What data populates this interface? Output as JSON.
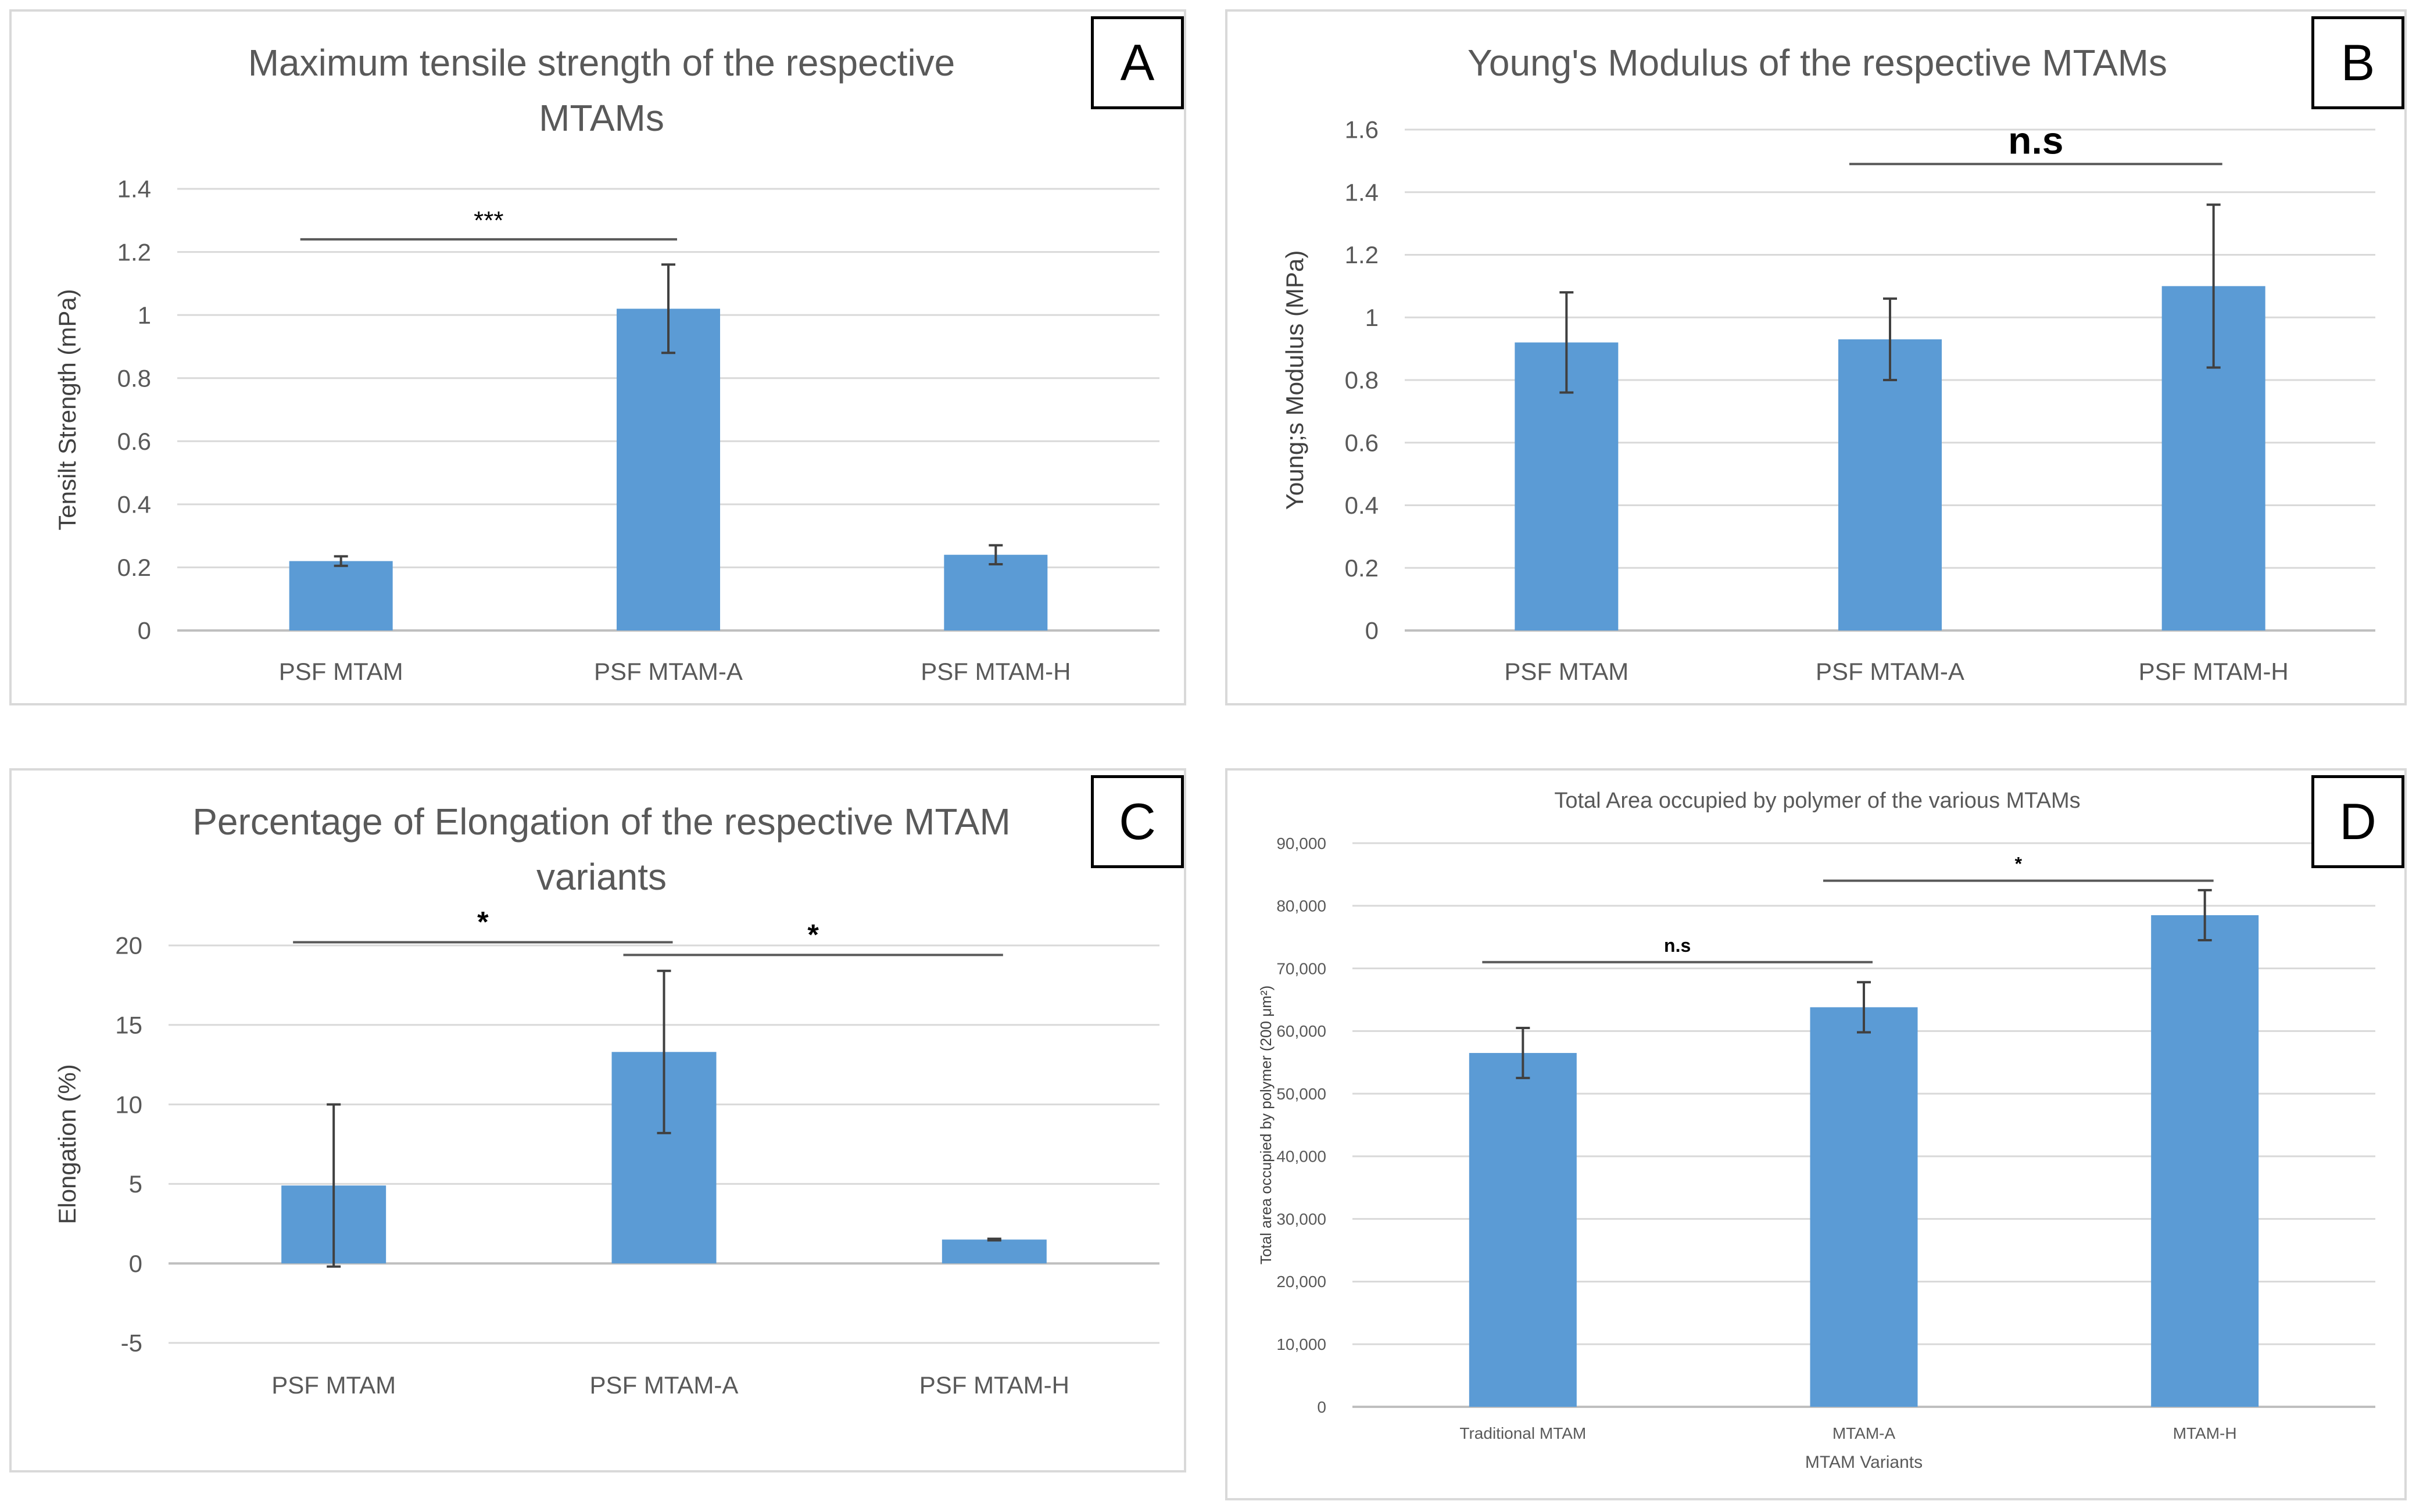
{
  "colors": {
    "bar": "#5b9bd5",
    "grid": "#d9d9d9",
    "axis_text": "#595959",
    "error": "#404040",
    "sig_line": "#595959"
  },
  "chart_data": [
    {
      "id": "A",
      "type": "bar",
      "panel_label": "A",
      "title_lines": [
        "Maximum tensile strength of the respective",
        "MTAMs"
      ],
      "ylabel": "Tensilt Strength (mPa)",
      "xlabel": "",
      "categories": [
        "PSF MTAM",
        "PSF MTAM-A",
        "PSF MTAM-H"
      ],
      "values": [
        0.22,
        1.02,
        0.24
      ],
      "errors": [
        0.015,
        0.14,
        0.03
      ],
      "ylim": [
        0,
        1.4
      ],
      "yticks": [
        0,
        0.2,
        0.4,
        0.6,
        0.8,
        1,
        1.2,
        1.4
      ],
      "ytick_labels": [
        "0",
        "0.2",
        "0.4",
        "0.6",
        "0.8",
        "1",
        "1.2",
        "1.4"
      ],
      "significance": [
        {
          "from": 0,
          "to": 1,
          "level": 1.24,
          "label": "***"
        }
      ]
    },
    {
      "id": "B",
      "type": "bar",
      "panel_label": "B",
      "title_lines": [
        "Young's Modulus of the respective MTAMs"
      ],
      "ylabel": "Young;s Modulus (MPa)",
      "xlabel": "",
      "categories": [
        "PSF MTAM",
        "PSF MTAM-A",
        "PSF MTAM-H"
      ],
      "values": [
        0.92,
        0.93,
        1.1
      ],
      "errors": [
        0.16,
        0.13,
        0.26
      ],
      "ylim": [
        0,
        1.6
      ],
      "yticks": [
        0,
        0.2,
        0.4,
        0.6,
        0.8,
        1,
        1.2,
        1.4,
        1.6
      ],
      "ytick_labels": [
        "0",
        "0.2",
        "0.4",
        "0.6",
        "0.8",
        "1",
        "1.2",
        "1.4",
        "1.6"
      ],
      "significance": [
        {
          "from": 1,
          "to": 2,
          "level": 1.49,
          "label": "n.s"
        }
      ]
    },
    {
      "id": "C",
      "type": "bar",
      "panel_label": "C",
      "title_lines": [
        "Percentage of Elongation of the respective MTAM",
        "variants"
      ],
      "ylabel": "Elongation (%)",
      "xlabel": "",
      "categories": [
        "PSF MTAM",
        "PSF MTAM-A",
        "PSF MTAM-H"
      ],
      "values": [
        4.9,
        13.3,
        1.5
      ],
      "errors": [
        5.1,
        5.1,
        0.05
      ],
      "ylim": [
        -5,
        20
      ],
      "yticks": [
        -5,
        0,
        5,
        10,
        15,
        20
      ],
      "ytick_labels": [
        "-5",
        "0",
        "5",
        "10",
        "15",
        "20"
      ],
      "significance": [
        {
          "from": 0,
          "to": 1,
          "level": 20.2,
          "label": "*"
        },
        {
          "from": 1,
          "to": 2,
          "level": 19.4,
          "label": "*"
        }
      ]
    },
    {
      "id": "D",
      "type": "bar",
      "panel_label": "D",
      "title_lines": [
        "Total Area occupied by polymer of the various MTAMs"
      ],
      "ylabel": "Total area occupied by polymer (200 μm²)",
      "xlabel": "MTAM Variants",
      "categories": [
        "Traditional MTAM",
        "MTAM-A",
        "MTAM-H"
      ],
      "values": [
        56500,
        63800,
        78500
      ],
      "errors": [
        4000,
        4000,
        4000
      ],
      "ylim": [
        0,
        90000
      ],
      "yticks": [
        0,
        10000,
        20000,
        30000,
        40000,
        50000,
        60000,
        70000,
        80000,
        90000
      ],
      "ytick_labels": [
        "0",
        "10,000",
        "20,000",
        "30,000",
        "40,000",
        "50,000",
        "60,000",
        "70,000",
        "80,000",
        "90,000"
      ],
      "significance": [
        {
          "from": 0,
          "to": 1,
          "level": 71000,
          "label": "n.s"
        },
        {
          "from": 1,
          "to": 2,
          "level": 84000,
          "label": "*"
        }
      ]
    }
  ]
}
